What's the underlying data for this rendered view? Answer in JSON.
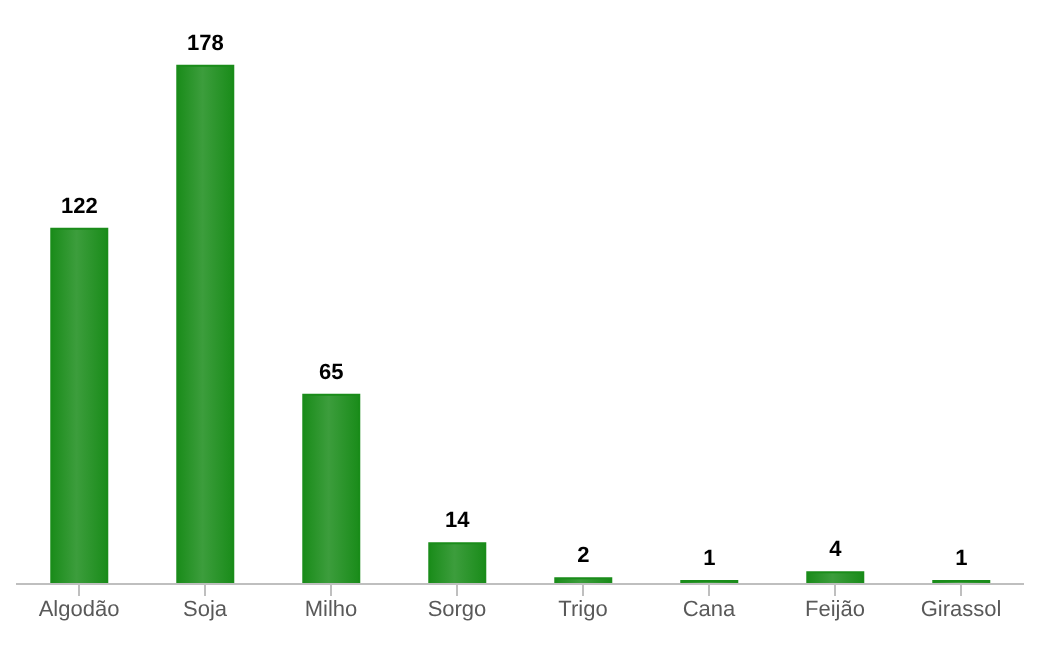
{
  "chart_data": {
    "type": "bar",
    "categories": [
      "Algodão",
      "Soja",
      "Milho",
      "Sorgo",
      "Trigo",
      "Cana",
      "Feijão",
      "Girassol"
    ],
    "values": [
      122,
      178,
      65,
      14,
      2,
      1,
      4,
      1
    ],
    "color": "#1a8c1a",
    "data_labels": true
  }
}
